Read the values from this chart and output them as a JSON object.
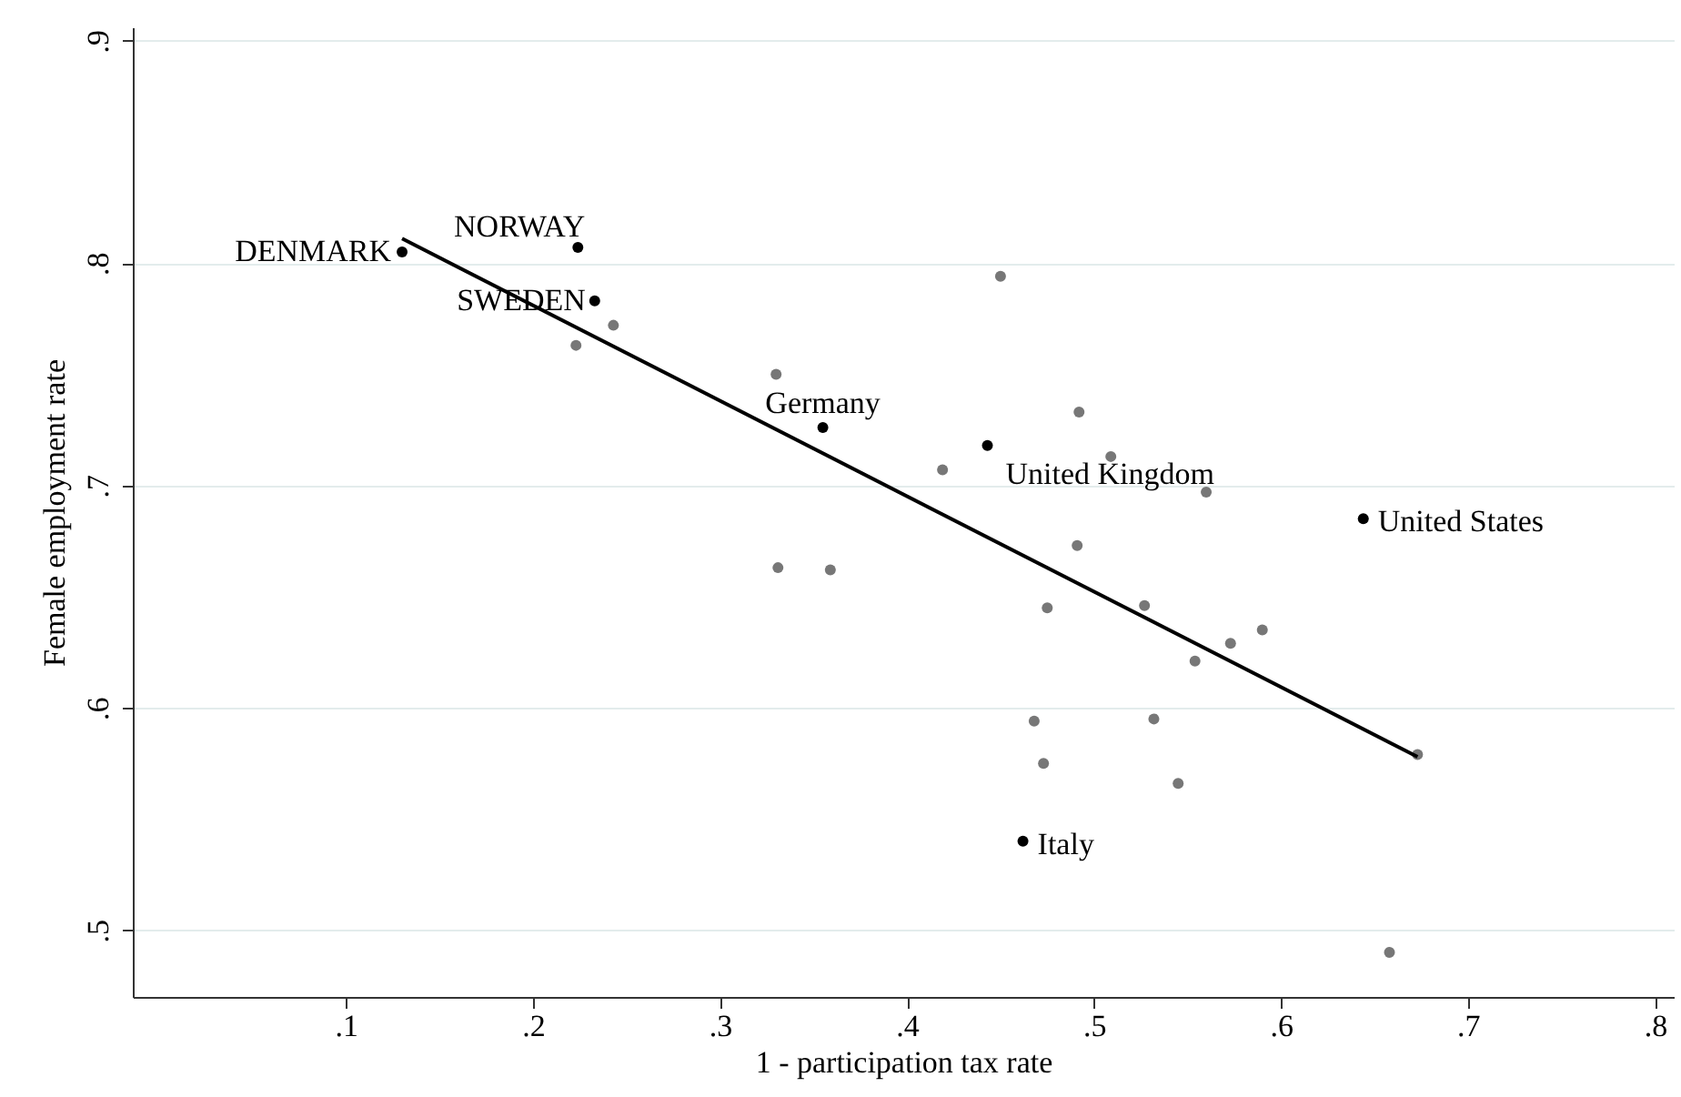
{
  "chart_data": {
    "type": "scatter",
    "xlabel": "1 - participation tax rate",
    "ylabel": "Female employment rate",
    "xlim": [
      -0.014,
      0.81
    ],
    "ylim": [
      0.47,
      0.906
    ],
    "xticks": [
      {
        "value": 0.1,
        "label": ".1"
      },
      {
        "value": 0.2,
        "label": ".2"
      },
      {
        "value": 0.3,
        "label": ".3"
      },
      {
        "value": 0.4,
        "label": ".4"
      },
      {
        "value": 0.5,
        "label": ".5"
      },
      {
        "value": 0.6,
        "label": ".6"
      },
      {
        "value": 0.7,
        "label": ".7"
      },
      {
        "value": 0.8,
        "label": ".8"
      }
    ],
    "yticks": [
      {
        "value": 0.5,
        "label": ".5"
      },
      {
        "value": 0.6,
        "label": ".6"
      },
      {
        "value": 0.7,
        "label": ".7"
      },
      {
        "value": 0.8,
        "label": ".8"
      },
      {
        "value": 0.9,
        "label": ".9"
      }
    ],
    "grid": "y",
    "marker": "circle",
    "series": [
      {
        "color": "#777777",
        "x": [
          0.45,
          0.243,
          0.223,
          0.33,
          0.492,
          0.509,
          0.419,
          0.56,
          0.491,
          0.331,
          0.359,
          0.475,
          0.527,
          0.59,
          0.573,
          0.554,
          0.468,
          0.532,
          0.473,
          0.545,
          0.673,
          0.658
        ],
        "values": [
          0.794,
          0.772,
          0.763,
          0.75,
          0.733,
          0.713,
          0.707,
          0.697,
          0.673,
          0.663,
          0.662,
          0.645,
          0.646,
          0.635,
          0.629,
          0.621,
          0.594,
          0.595,
          0.575,
          0.566,
          0.579,
          0.49
        ]
      },
      {
        "type": "line",
        "color": "#000000",
        "marker": "none",
        "line_style": "solid",
        "x": [
          0.13,
          0.673
        ],
        "values": [
          0.811,
          0.578
        ]
      },
      {
        "color": "#000000",
        "x": [
          0.13,
          0.224,
          0.233,
          0.355,
          0.443,
          0.644,
          0.462
        ],
        "values": [
          0.805,
          0.807,
          0.783,
          0.726,
          0.718,
          0.685,
          0.54
        ],
        "value_labels": [
          "DENMARK",
          "NORWAY",
          "SWEDEN",
          "Germany",
          "United Kingdom",
          "United States",
          "Italy"
        ]
      }
    ]
  }
}
